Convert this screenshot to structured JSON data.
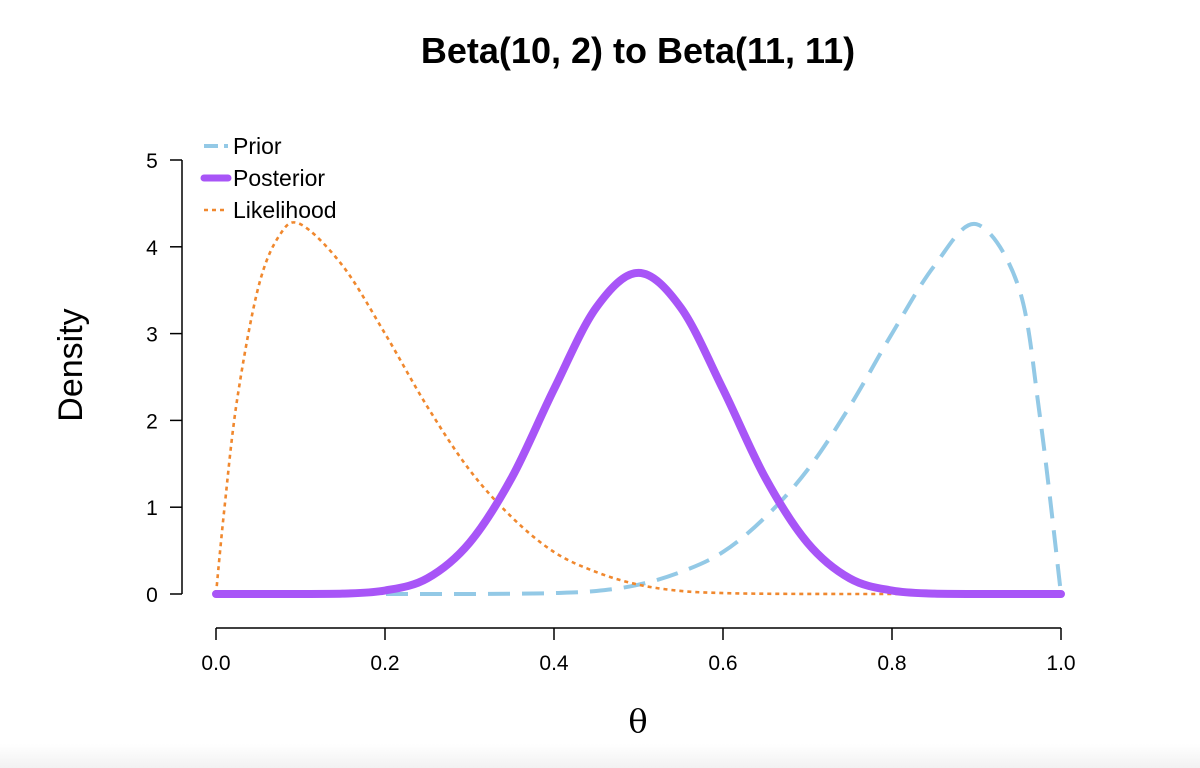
{
  "chart_data": {
    "type": "line",
    "title": "Beta(10, 2) to Beta(11, 11)",
    "xlabel": "θ",
    "ylabel": "Density",
    "xlim": [
      0,
      1
    ],
    "ylim": [
      0,
      5
    ],
    "x_ticks": [
      "0.0",
      "0.2",
      "0.4",
      "0.6",
      "0.8",
      "1.0"
    ],
    "y_ticks": [
      "0",
      "1",
      "2",
      "3",
      "4",
      "5"
    ],
    "grid": false,
    "legend_position": "top-left",
    "series": [
      {
        "name": "Prior",
        "color": "#93c9e6",
        "style": "dashed",
        "x": [
          0.0,
          0.05,
          0.1,
          0.15,
          0.2,
          0.25,
          0.3,
          0.35,
          0.4,
          0.45,
          0.5,
          0.55,
          0.6,
          0.65,
          0.7,
          0.75,
          0.8,
          0.85,
          0.9,
          0.95,
          0.975,
          1.0
        ],
        "y": [
          0.0,
          0.0,
          0.0,
          0.0,
          0.0,
          0.0,
          0.0,
          0.003,
          0.011,
          0.035,
          0.107,
          0.253,
          0.484,
          0.885,
          1.43,
          2.16,
          3.0,
          3.78,
          4.26,
          3.53,
          2.05,
          0.0
        ]
      },
      {
        "name": "Posterior",
        "color": "#a855f7",
        "style": "solid",
        "x": [
          0.0,
          0.05,
          0.1,
          0.15,
          0.2,
          0.25,
          0.3,
          0.35,
          0.4,
          0.45,
          0.5,
          0.55,
          0.6,
          0.65,
          0.7,
          0.75,
          0.8,
          0.85,
          0.9,
          0.95,
          1.0
        ],
        "y": [
          0.0,
          0.0,
          0.0,
          0.004,
          0.04,
          0.18,
          0.59,
          1.34,
          2.36,
          3.3,
          3.7,
          3.3,
          2.36,
          1.34,
          0.59,
          0.18,
          0.04,
          0.004,
          0.0,
          0.0,
          0.0
        ]
      },
      {
        "name": "Likelihood",
        "color": "#f0882e",
        "style": "dotted",
        "x": [
          0.0,
          0.01,
          0.025,
          0.05,
          0.075,
          0.1,
          0.15,
          0.2,
          0.25,
          0.3,
          0.35,
          0.4,
          0.45,
          0.5,
          0.55,
          0.6,
          0.65,
          0.7,
          0.75,
          0.8,
          0.85,
          0.9,
          0.95,
          1.0
        ],
        "y": [
          0.0,
          0.99,
          2.24,
          3.53,
          4.13,
          4.26,
          3.78,
          3.0,
          2.16,
          1.43,
          0.885,
          0.484,
          0.253,
          0.107,
          0.035,
          0.011,
          0.003,
          0.001,
          0.0,
          0.0,
          0.0,
          0.0,
          0.0,
          0.0
        ]
      }
    ]
  }
}
